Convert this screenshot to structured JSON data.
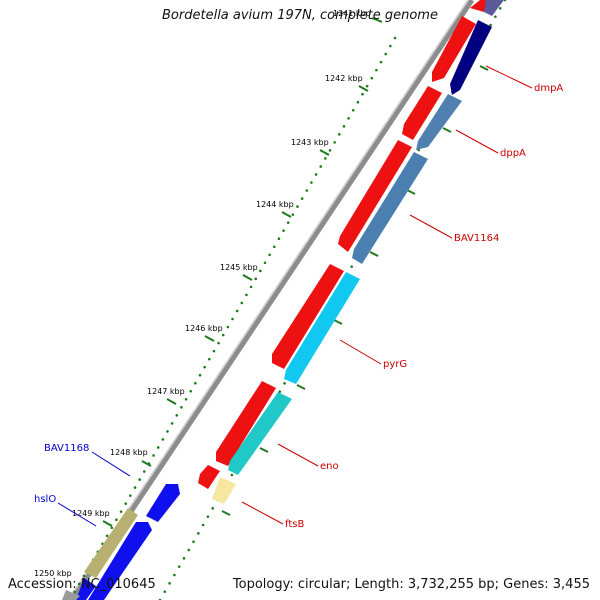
{
  "title": "Bordetella avium 197N, complete genome",
  "footer": {
    "accession": "Accession: NC_010645",
    "summary": "Topology: circular; Length: 3,732,255 bp; Genes: 3,455"
  },
  "colors": {
    "backbone": "#8c8c8c",
    "tick_dots": "#1e7a1e",
    "forward_label": "#cc0000",
    "reverse_label": "#0000cc"
  },
  "ticks": [
    "1241 kbp",
    "1242 kbp",
    "1243 kbp",
    "1244 kbp",
    "1245 kbp",
    "1246 kbp",
    "1247 kbp",
    "1248 kbp",
    "1249 kbp",
    "1250 kbp"
  ],
  "genes": [
    {
      "name": "dmpA",
      "strand": "forward"
    },
    {
      "name": "dppA",
      "strand": "forward"
    },
    {
      "name": "BAV1164",
      "strand": "forward"
    },
    {
      "name": "pyrG",
      "strand": "forward"
    },
    {
      "name": "eno",
      "strand": "forward"
    },
    {
      "name": "ftsB",
      "strand": "forward"
    },
    {
      "name": "BAV1168",
      "strand": "reverse"
    },
    {
      "name": "hslO",
      "strand": "reverse"
    }
  ]
}
